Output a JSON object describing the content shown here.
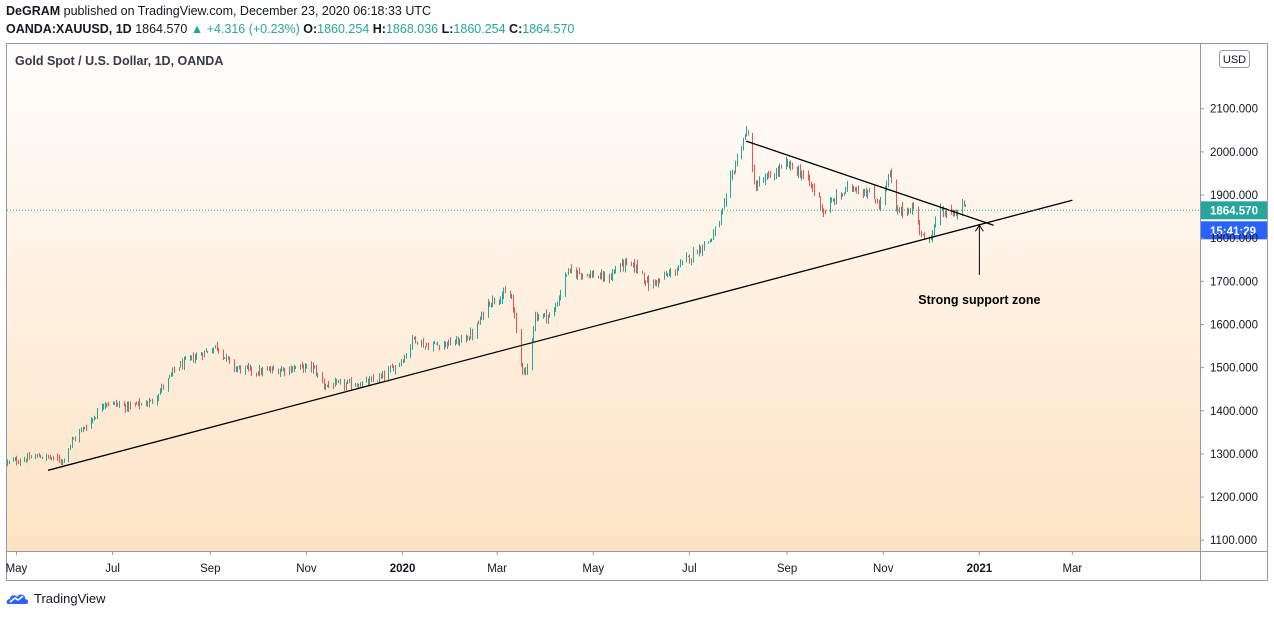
{
  "header": {
    "author": "DeGRAM",
    "published": "published on TradingView.com, December 23, 2020 06:18:33 UTC",
    "symbol": "OANDA:XAUUSD, 1D",
    "last": "1864.570",
    "change": "▲ +4.316 (+0.23%)",
    "o_label": "O:",
    "o_value": "1860.254",
    "h_label": "H:",
    "h_value": "1868.036",
    "l_label": "L:",
    "l_value": "1860.254",
    "c_label": "C:",
    "c_value": "1864.570"
  },
  "footer": {
    "brand": "TradingView"
  },
  "chart_data": {
    "type": "candlestick",
    "title": "Gold Spot / U.S. Dollar, 1D, OANDA",
    "currency": "USD",
    "y_ticks": [
      "1100.000",
      "1200.000",
      "1300.000",
      "1400.000",
      "1500.000",
      "1600.000",
      "1700.000",
      "1800.000",
      "1900.000",
      "2000.000",
      "2100.000"
    ],
    "ylim": [
      1075,
      2250
    ],
    "x_ticks": [
      {
        "label": "May",
        "date": "2019-05-01",
        "bold": false
      },
      {
        "label": "Jul",
        "date": "2019-07-01",
        "bold": false
      },
      {
        "label": "Sep",
        "date": "2019-09-01",
        "bold": false
      },
      {
        "label": "Nov",
        "date": "2019-11-01",
        "bold": false
      },
      {
        "label": "2020",
        "date": "2020-01-01",
        "bold": true
      },
      {
        "label": "Mar",
        "date": "2020-03-01",
        "bold": false
      },
      {
        "label": "May",
        "date": "2020-05-01",
        "bold": false
      },
      {
        "label": "Jul",
        "date": "2020-07-01",
        "bold": false
      },
      {
        "label": "Sep",
        "date": "2020-09-01",
        "bold": false
      },
      {
        "label": "Nov",
        "date": "2020-11-01",
        "bold": false
      },
      {
        "label": "2021",
        "date": "2021-01-01",
        "bold": true
      },
      {
        "label": "Mar",
        "date": "2021-03-01",
        "bold": false
      }
    ],
    "xlim": [
      "2019-04-25",
      "2021-05-21"
    ],
    "last_price": "1864.570",
    "countdown": "15:41:29",
    "price_path": [
      [
        "2019-04-25",
        1280
      ],
      [
        "2019-05-15",
        1295
      ],
      [
        "2019-05-30",
        1285
      ],
      [
        "2019-06-05",
        1330
      ],
      [
        "2019-06-20",
        1390
      ],
      [
        "2019-06-25",
        1420
      ],
      [
        "2019-07-10",
        1410
      ],
      [
        "2019-07-25",
        1420
      ],
      [
        "2019-08-05",
        1470
      ],
      [
        "2019-08-10",
        1500
      ],
      [
        "2019-08-25",
        1530
      ],
      [
        "2019-09-05",
        1550
      ],
      [
        "2019-09-15",
        1500
      ],
      [
        "2019-10-01",
        1490
      ],
      [
        "2019-10-15",
        1495
      ],
      [
        "2019-10-25",
        1500
      ],
      [
        "2019-11-05",
        1500
      ],
      [
        "2019-11-12",
        1460
      ],
      [
        "2019-11-25",
        1460
      ],
      [
        "2019-12-10",
        1465
      ],
      [
        "2019-12-20",
        1480
      ],
      [
        "2020-01-02",
        1525
      ],
      [
        "2020-01-08",
        1570
      ],
      [
        "2020-01-15",
        1550
      ],
      [
        "2020-02-05",
        1560
      ],
      [
        "2020-02-15",
        1580
      ],
      [
        "2020-02-24",
        1650
      ],
      [
        "2020-03-05",
        1670
      ],
      [
        "2020-03-10",
        1660
      ],
      [
        "2020-03-16",
        1510
      ],
      [
        "2020-03-19",
        1480
      ],
      [
        "2020-03-25",
        1620
      ],
      [
        "2020-04-05",
        1620
      ],
      [
        "2020-04-14",
        1720
      ],
      [
        "2020-04-25",
        1720
      ],
      [
        "2020-05-10",
        1705
      ],
      [
        "2020-05-18",
        1740
      ],
      [
        "2020-05-30",
        1730
      ],
      [
        "2020-06-05",
        1690
      ],
      [
        "2020-06-20",
        1720
      ],
      [
        "2020-07-05",
        1770
      ],
      [
        "2020-07-15",
        1800
      ],
      [
        "2020-07-22",
        1860
      ],
      [
        "2020-07-28",
        1950
      ],
      [
        "2020-08-04",
        2030
      ],
      [
        "2020-08-07",
        2050
      ],
      [
        "2020-08-11",
        1920
      ],
      [
        "2020-08-20",
        1940
      ],
      [
        "2020-09-01",
        1970
      ],
      [
        "2020-09-10",
        1950
      ],
      [
        "2020-09-20",
        1900
      ],
      [
        "2020-09-24",
        1860
      ],
      [
        "2020-10-01",
        1890
      ],
      [
        "2020-10-12",
        1920
      ],
      [
        "2020-10-20",
        1910
      ],
      [
        "2020-10-30",
        1880
      ],
      [
        "2020-11-05",
        1950
      ],
      [
        "2020-11-09",
        1860
      ],
      [
        "2020-11-20",
        1870
      ],
      [
        "2020-11-27",
        1790
      ],
      [
        "2020-12-01",
        1810
      ],
      [
        "2020-12-07",
        1860
      ],
      [
        "2020-12-16",
        1855
      ],
      [
        "2020-12-21",
        1880
      ],
      [
        "2020-12-23",
        1864.57
      ]
    ],
    "trendlines": [
      {
        "name": "support",
        "from": [
          "2019-05-21",
          1262
        ],
        "to": [
          "2021-03-01",
          1888
        ]
      },
      {
        "name": "resistance",
        "from": [
          "2020-08-06",
          2025
        ],
        "to": [
          "2021-01-10",
          1830
        ]
      }
    ],
    "annotation": {
      "text": "Strong support zone",
      "arrow_from": [
        "2021-01-01",
        1715
      ],
      "arrow_to": [
        "2021-01-01",
        1830
      ]
    }
  }
}
